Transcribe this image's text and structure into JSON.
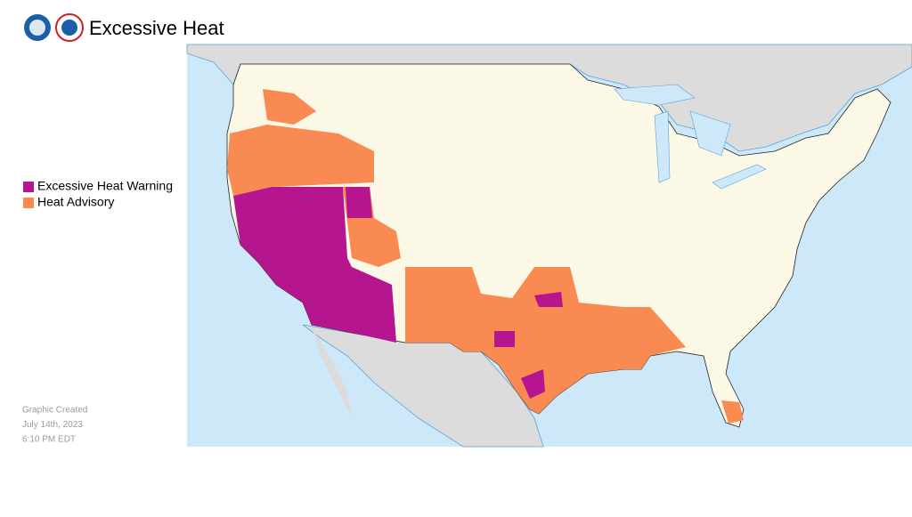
{
  "header": {
    "title": "Excessive Heat"
  },
  "legend": {
    "items": [
      {
        "label": "Excessive Heat Warning",
        "color": "#b5158e"
      },
      {
        "label": "Heat Advisory",
        "color": "#f98a52"
      }
    ]
  },
  "footer": {
    "lines": [
      "Graphic Created",
      "July 14th, 2023",
      "6:10 PM EDT"
    ]
  }
}
